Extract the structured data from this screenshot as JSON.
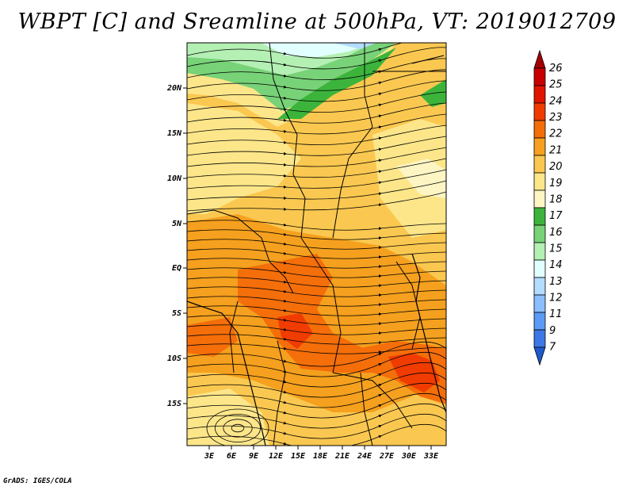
{
  "title": "WBPT [C] and Sreamline at 500hPa, VT: 2019012709",
  "credit": "GrADS: IGES/COLA",
  "lat_labels": [
    "20N",
    "15N",
    "10N",
    "5N",
    "EQ",
    "5S",
    "10S",
    "15S"
  ],
  "lon_labels": [
    "3E",
    "6E",
    "9E",
    "12E",
    "15E",
    "18E",
    "21E",
    "24E",
    "27E",
    "30E",
    "33E"
  ],
  "colorbar": {
    "labels": [
      "26",
      "25",
      "24",
      "23",
      "22",
      "21",
      "20",
      "19",
      "18",
      "17",
      "16",
      "15",
      "14",
      "13",
      "12",
      "11",
      "9",
      "7"
    ],
    "colors": [
      "#a50000",
      "#c80000",
      "#e11400",
      "#f03c00",
      "#f46e0a",
      "#f5a01e",
      "#fac850",
      "#fde68a",
      "#fdf5c4",
      "#3cb43c",
      "#78d278",
      "#b4f0b4",
      "#e1ffff",
      "#b4dcff",
      "#8cbeff",
      "#5a9bf5",
      "#3c78e6",
      "#1e5acd"
    ]
  },
  "chart_data": {
    "type": "heatmap",
    "variable": "WBPT [C]",
    "level": "500hPa",
    "valid_time": "2019012709",
    "lon_range": [
      0,
      35
    ],
    "lat_range": [
      -20,
      24
    ],
    "scale": [
      7,
      9,
      11,
      12,
      13,
      14,
      15,
      16,
      17,
      18,
      19,
      20,
      21,
      22,
      23,
      24,
      25,
      26
    ]
  }
}
